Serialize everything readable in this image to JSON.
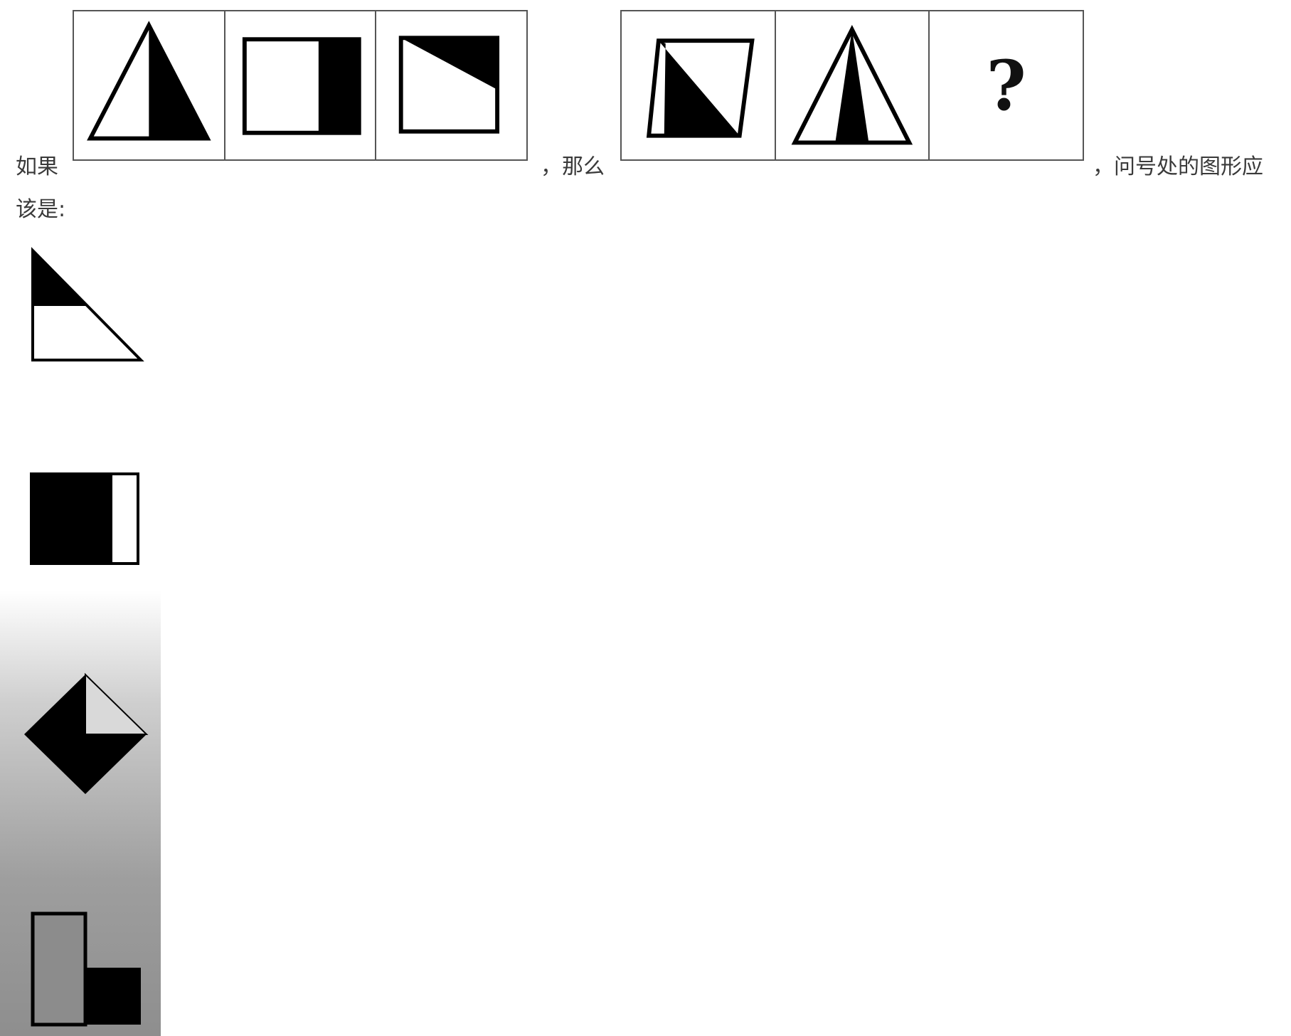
{
  "question": {
    "part1": "如果",
    "part2": "，那么",
    "part3": "，问号处的图形应",
    "part4": "该是:"
  },
  "sequence_2": {
    "unknown": "?"
  },
  "icons": {
    "strip1": [
      "triangle-half-black-icon",
      "square-right-black-icon",
      "square-corner-black-icon"
    ],
    "strip2": [
      "parallelogram-diagonal-black-icon",
      "triangle-center-black-icon",
      "question-mark-icon"
    ],
    "options": [
      "right-triangle-top-black-icon",
      "square-left-black-icon",
      "diamond-three-quarter-black-icon",
      "l-shape-block-icon"
    ]
  }
}
